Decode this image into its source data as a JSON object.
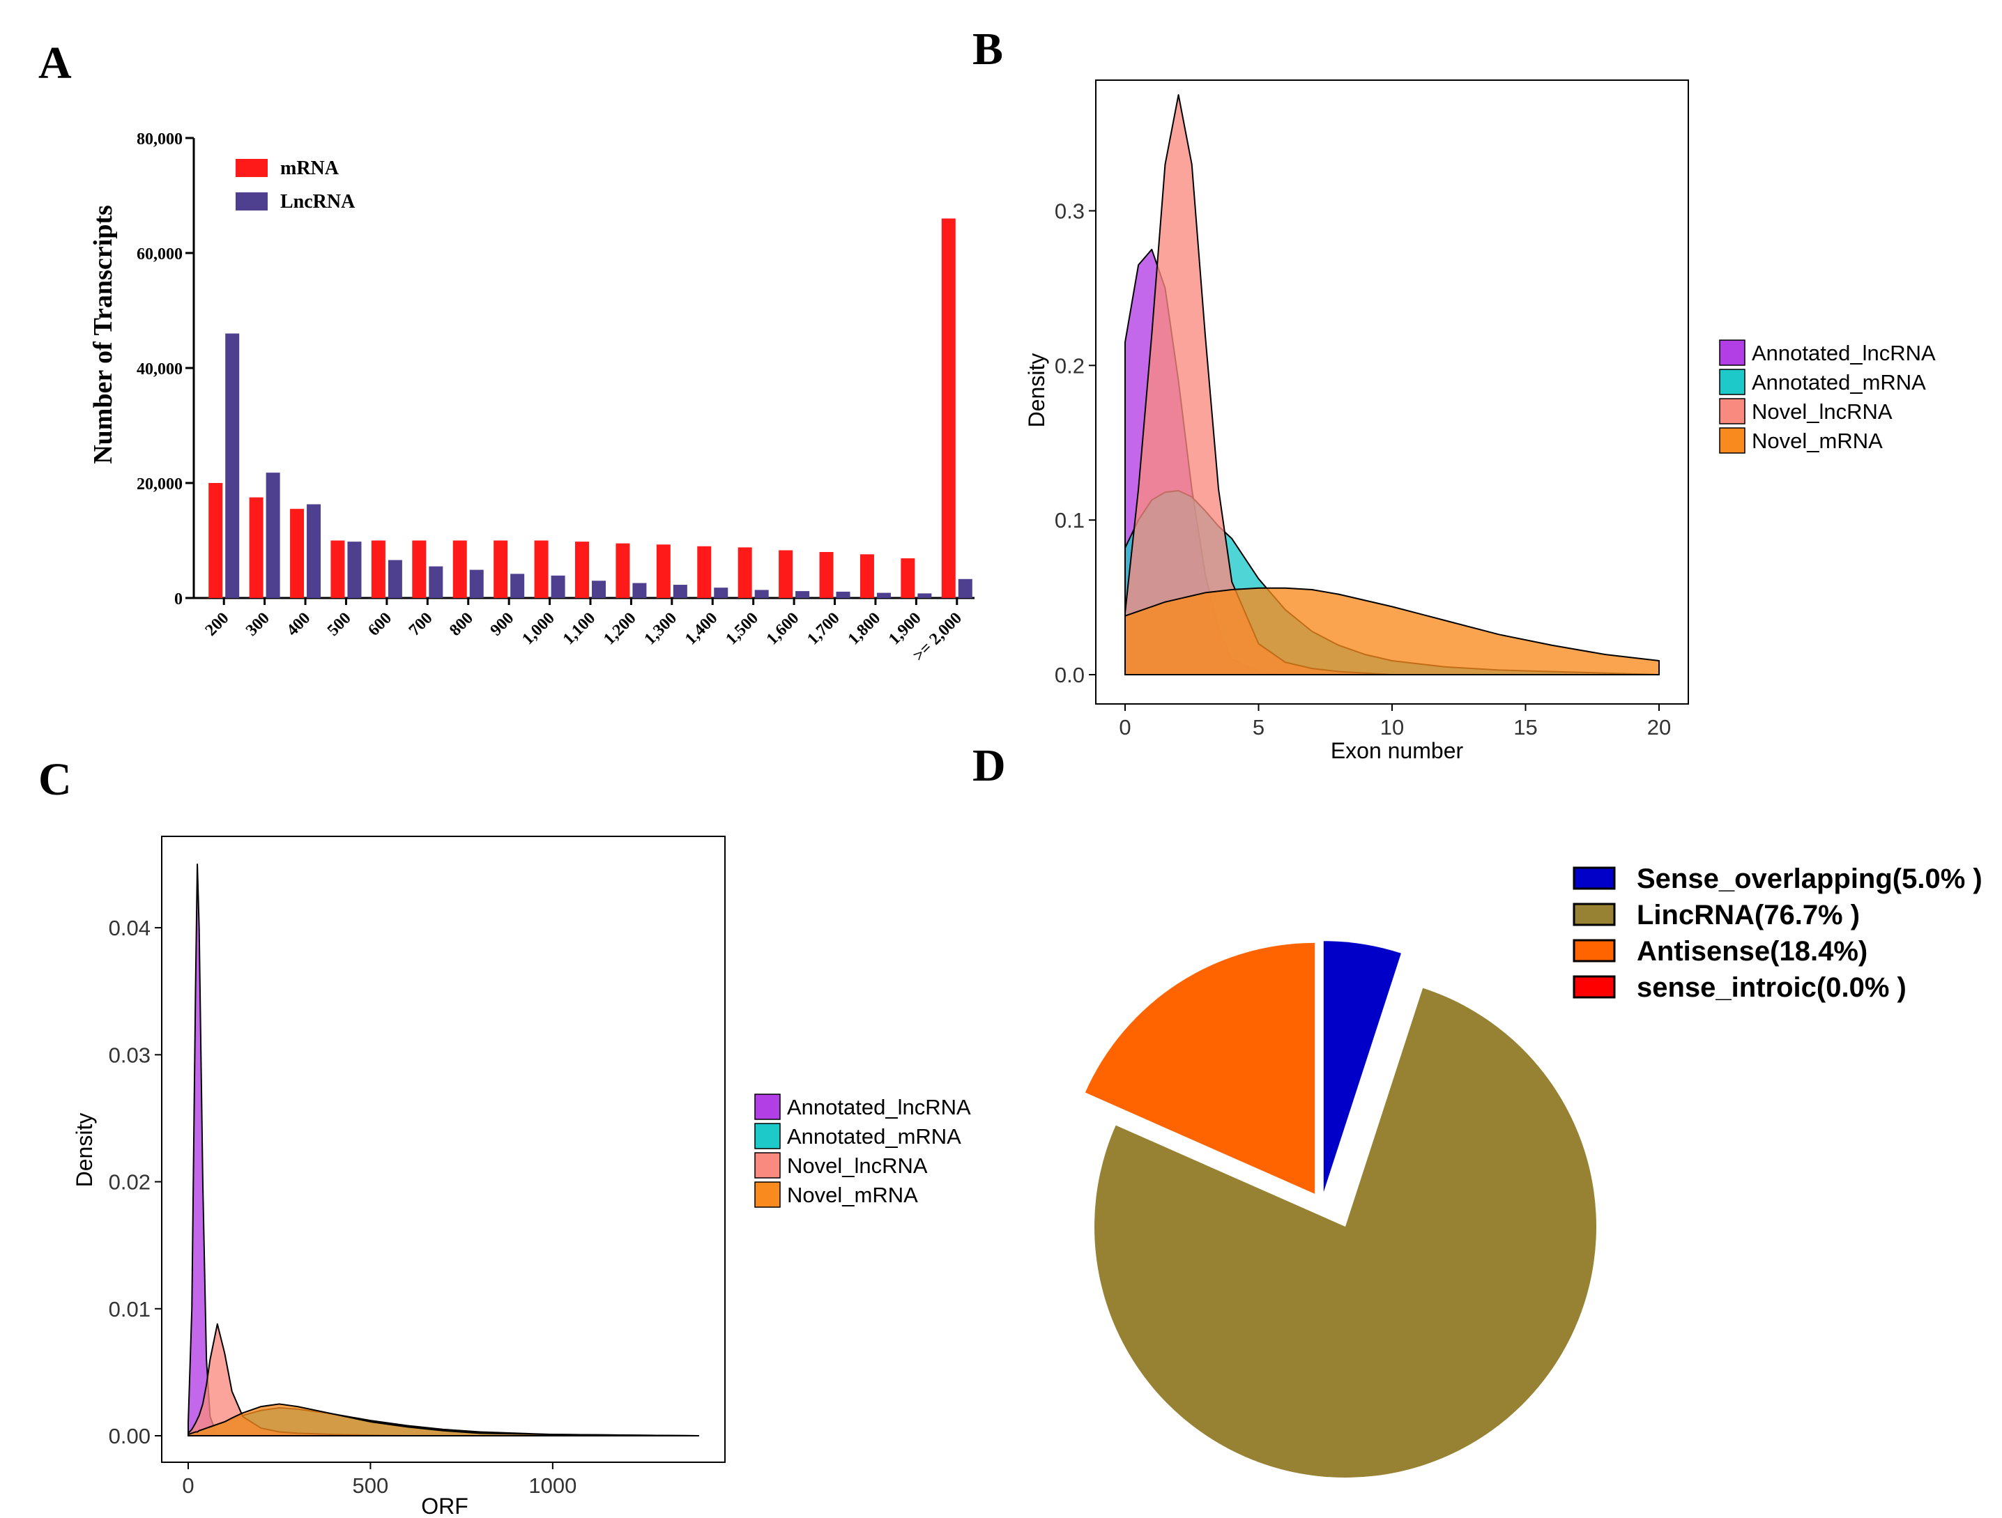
{
  "panels": [
    "A",
    "B",
    "C",
    "D"
  ],
  "chart_data": [
    {
      "panel": "A",
      "type": "bar",
      "title": "",
      "xlabel": "",
      "ylabel": "Number of Transcripts",
      "ylim": [
        0,
        80000
      ],
      "yticks": [
        "0",
        "20,000",
        "40,000",
        "60,000",
        "80,000"
      ],
      "categories": [
        "200",
        "300",
        "400",
        "500",
        "600",
        "700",
        "800",
        "900",
        "1,000",
        "1,100",
        "1,200",
        "1,300",
        "1,400",
        "1,500",
        "1,600",
        "1,700",
        "1,800",
        "1,900",
        ">= 2,000"
      ],
      "series": [
        {
          "name": "mRNA",
          "color": "#ff1a1a",
          "values": [
            20000,
            17500,
            15500,
            10000,
            10000,
            10000,
            10000,
            10000,
            10000,
            9800,
            9500,
            9300,
            9000,
            8800,
            8300,
            8000,
            7600,
            6900,
            66000
          ]
        },
        {
          "name": "LncRNA",
          "color": "#4f3f8f",
          "values": [
            46000,
            21800,
            16300,
            9800,
            6600,
            5500,
            4900,
            4200,
            3900,
            3000,
            2600,
            2300,
            1800,
            1400,
            1200,
            1100,
            900,
            800,
            3300
          ]
        }
      ],
      "legend_position": "top-left"
    },
    {
      "panel": "B",
      "type": "area",
      "title": "",
      "xlabel": "Exon number",
      "ylabel": "Density",
      "xlim": [
        0,
        20
      ],
      "ylim": [
        0,
        0.38
      ],
      "xticks": [
        "0",
        "5",
        "10",
        "15",
        "20"
      ],
      "yticks": [
        "0.0",
        "0.1",
        "0.2",
        "0.3"
      ],
      "x": [
        0,
        0.5,
        1,
        1.5,
        2,
        2.5,
        3,
        3.5,
        4,
        5,
        6,
        7,
        8,
        9,
        10,
        12,
        14,
        16,
        18,
        20
      ],
      "series": [
        {
          "name": "Annotated_lncRNA",
          "color": "#b23ee6",
          "values": [
            0.215,
            0.265,
            0.275,
            0.25,
            0.19,
            0.12,
            0.065,
            0.03,
            0.01,
            0.002,
            0.0,
            0.0,
            0.0,
            0.0,
            0.0,
            0.0,
            0.0,
            0.0,
            0.0,
            0.0
          ]
        },
        {
          "name": "Annotated_mRNA",
          "color": "#1dc9c9",
          "values": [
            0.082,
            0.1,
            0.113,
            0.118,
            0.119,
            0.115,
            0.106,
            0.096,
            0.088,
            0.062,
            0.042,
            0.028,
            0.019,
            0.013,
            0.009,
            0.005,
            0.003,
            0.002,
            0.001,
            0.0
          ]
        },
        {
          "name": "Novel_lncRNA",
          "color": "#f98a80",
          "values": [
            0.04,
            0.12,
            0.22,
            0.33,
            0.375,
            0.33,
            0.22,
            0.12,
            0.06,
            0.02,
            0.008,
            0.004,
            0.002,
            0.001,
            0.0,
            0.0,
            0.0,
            0.0,
            0.0,
            0.0
          ]
        },
        {
          "name": "Novel_mRNA",
          "color": "#f98a1e",
          "values": [
            0.038,
            0.041,
            0.044,
            0.047,
            0.049,
            0.051,
            0.053,
            0.054,
            0.055,
            0.056,
            0.056,
            0.055,
            0.052,
            0.048,
            0.044,
            0.035,
            0.026,
            0.019,
            0.013,
            0.009
          ]
        }
      ],
      "legend_position": "right"
    },
    {
      "panel": "C",
      "type": "area",
      "title": "",
      "xlabel": "ORF",
      "ylabel": "Density",
      "xlim": [
        0,
        1400
      ],
      "ylim": [
        0,
        0.045
      ],
      "xticks": [
        "0",
        "500",
        "1000"
      ],
      "yticks": [
        "0.00",
        "0.01",
        "0.02",
        "0.03",
        "0.04"
      ],
      "x": [
        0,
        10,
        20,
        25,
        30,
        40,
        50,
        60,
        80,
        100,
        120,
        150,
        200,
        250,
        300,
        400,
        500,
        600,
        700,
        800,
        1000,
        1200,
        1400
      ],
      "series": [
        {
          "name": "Annotated_lncRNA",
          "color": "#b23ee6",
          "values": [
            0.001,
            0.01,
            0.035,
            0.045,
            0.04,
            0.02,
            0.006,
            0.0015,
            0.0,
            0.0,
            0.0,
            0.0,
            0.0,
            0.0,
            0.0,
            0.0,
            0.0,
            0.0,
            0.0,
            0.0,
            0.0,
            0.0,
            0.0
          ]
        },
        {
          "name": "Annotated_mRNA",
          "color": "#1dc9c9",
          "values": [
            0.0001,
            0.0002,
            0.0003,
            0.0003,
            0.0004,
            0.0005,
            0.0006,
            0.0007,
            0.0009,
            0.0011,
            0.0013,
            0.0016,
            0.002,
            0.0022,
            0.0021,
            0.0017,
            0.0012,
            0.0008,
            0.0005,
            0.0003,
            0.0001,
            5e-05,
            0.0
          ]
        },
        {
          "name": "Novel_lncRNA",
          "color": "#f98a80",
          "values": [
            0.0002,
            0.0005,
            0.001,
            0.0013,
            0.0016,
            0.0025,
            0.004,
            0.006,
            0.0088,
            0.0065,
            0.0035,
            0.0015,
            0.0006,
            0.0003,
            0.0002,
            0.0001,
            5e-05,
            0.0,
            0.0,
            0.0,
            0.0,
            0.0,
            0.0
          ]
        },
        {
          "name": "Novel_mRNA",
          "color": "#f98a1e",
          "values": [
            0.0001,
            0.0002,
            0.0003,
            0.0003,
            0.0004,
            0.0005,
            0.0006,
            0.0007,
            0.0009,
            0.0011,
            0.0014,
            0.0018,
            0.0023,
            0.0025,
            0.0023,
            0.0017,
            0.0011,
            0.0007,
            0.0004,
            0.0002,
            0.0001,
            5e-05,
            0.0
          ]
        }
      ],
      "legend_position": "right"
    },
    {
      "panel": "D",
      "type": "pie",
      "title": "",
      "categories": [
        "Sense_overlapping(5.0% )",
        "LincRNA(76.7% )",
        "Antisense(18.4%)",
        "sense_introic(0.0% )"
      ],
      "values": [
        5.0,
        76.7,
        18.4,
        0.0
      ],
      "colors": [
        "#0000c8",
        "#968232",
        "#ff6400",
        "#ff0000"
      ],
      "exploded": [
        "LincRNA(76.7% )"
      ],
      "legend_position": "top-right"
    }
  ]
}
